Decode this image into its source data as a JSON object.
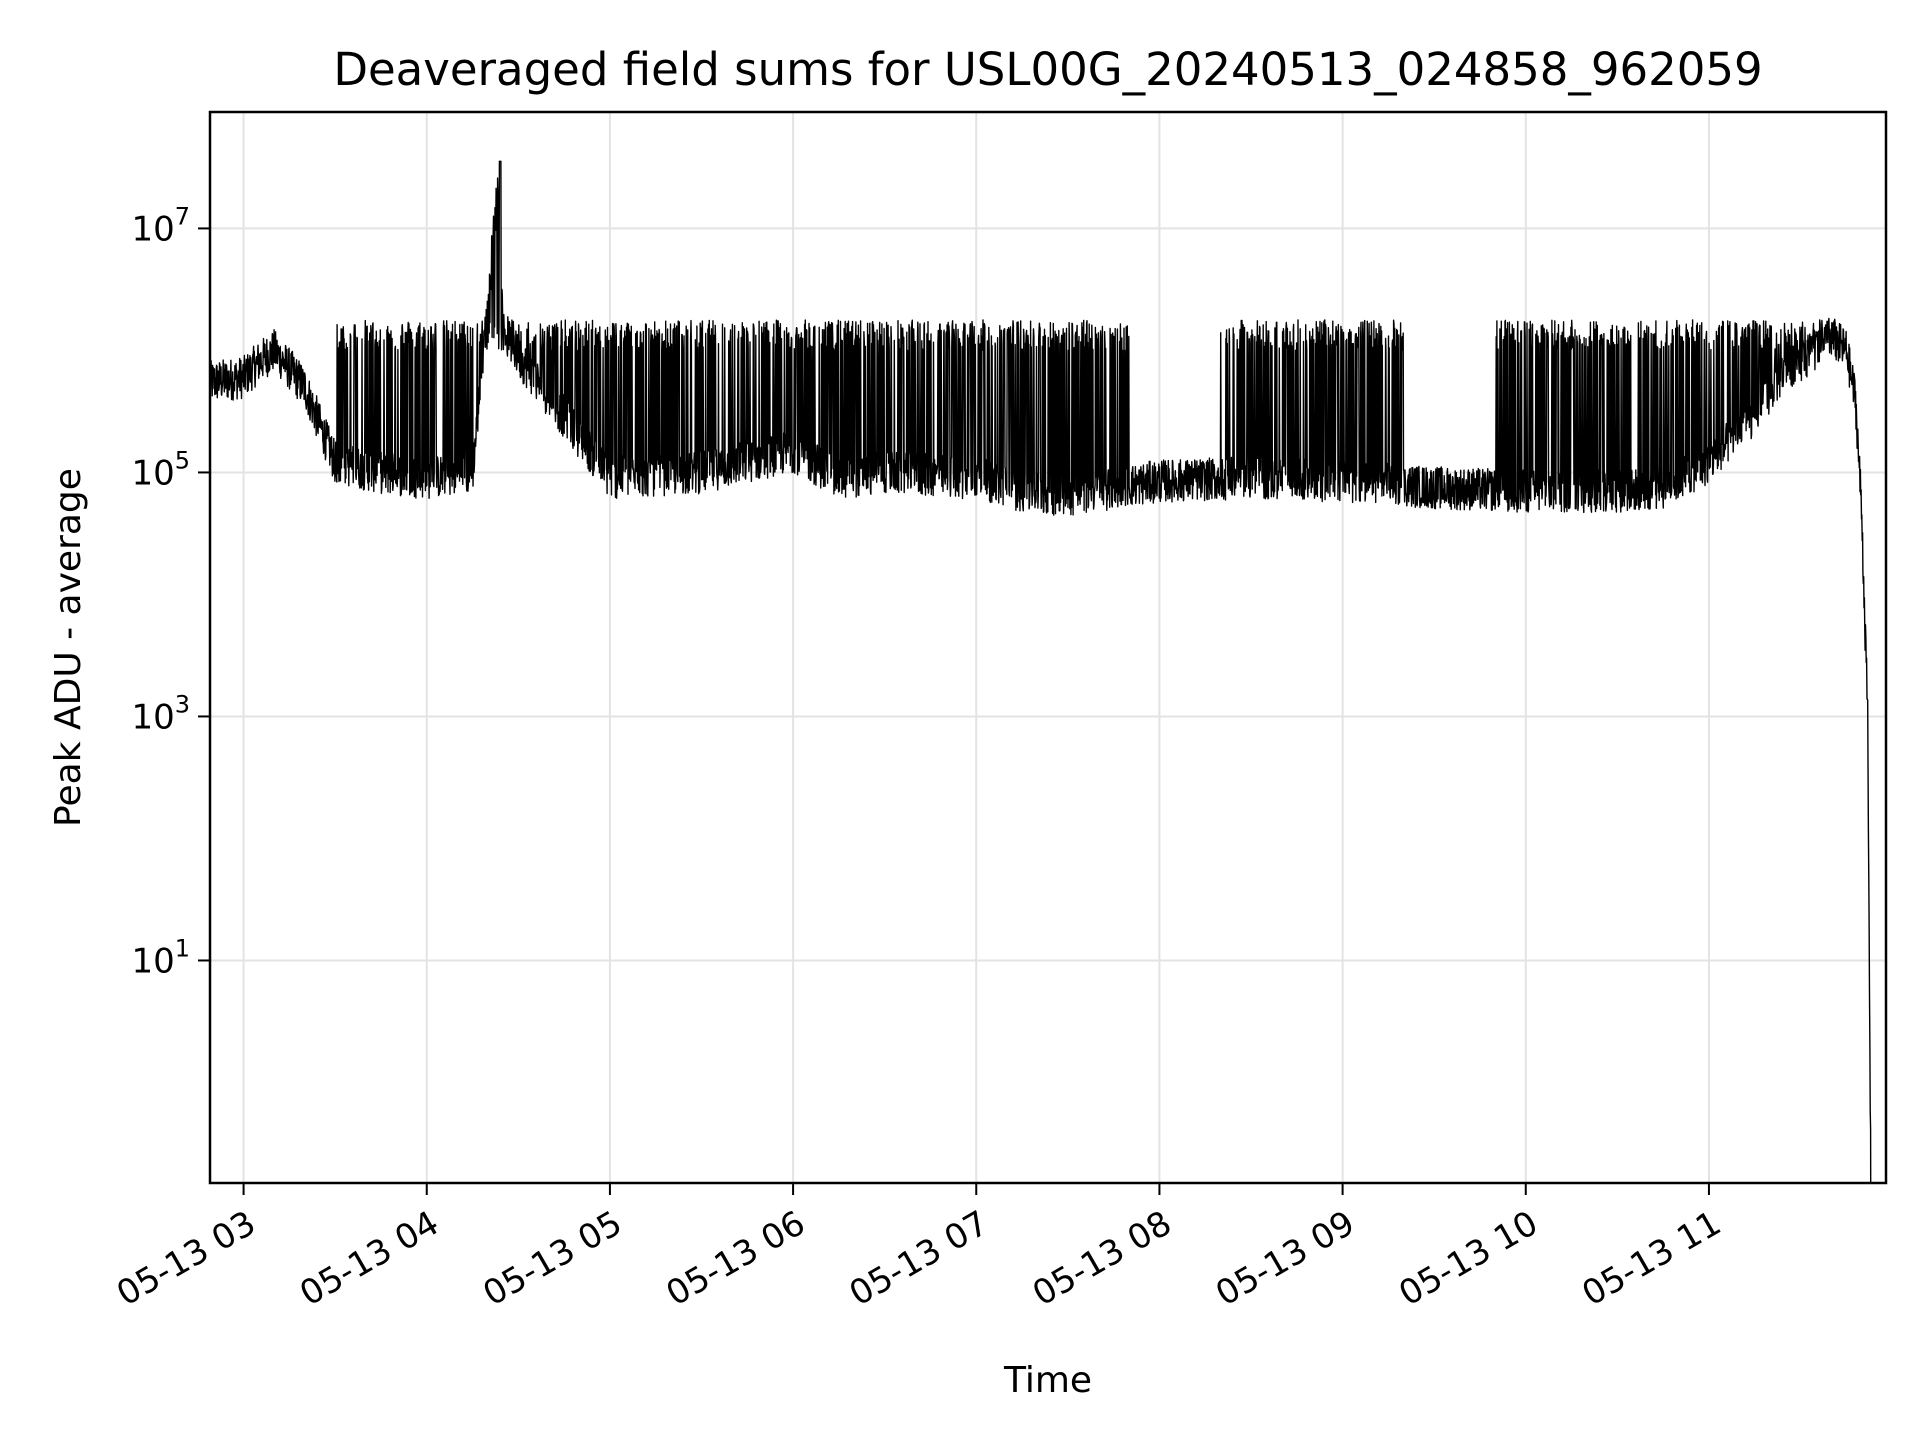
{
  "chart_data": {
    "type": "line",
    "title": "Deaveraged field sums for USL00G_20240513_024858_962059",
    "xlabel": "Time",
    "ylabel": "Peak ADU - average",
    "y_scale": "log",
    "ylim": [
      0.15,
      90000000
    ],
    "xlim": [
      "05-13 02:49",
      "05-13 11:58"
    ],
    "grid": true,
    "line_color": "#000000",
    "x_ticks": [
      "05-13 03",
      "05-13 04",
      "05-13 05",
      "05-13 06",
      "05-13 07",
      "05-13 08",
      "05-13 09",
      "05-13 10",
      "05-13 11"
    ],
    "y_ticks": [
      {
        "value": 10,
        "base": "10",
        "exp": "1"
      },
      {
        "value": 1000,
        "base": "10",
        "exp": "3"
      },
      {
        "value": 100000,
        "base": "10",
        "exp": "5"
      },
      {
        "value": 10000000,
        "base": "10",
        "exp": "7"
      }
    ],
    "series": [
      {
        "description": "spiky log-scale time series; baseline ~1e5 with frequent spikes to ~1.7e6",
        "x": [
          "05-13 02:49",
          "05-13 03:00",
          "05-13 03:05",
          "05-13 03:10",
          "05-13 03:20",
          "05-13 03:30",
          "05-13 03:45",
          "05-13 04:00",
          "05-13 04:15",
          "05-13 04:24",
          "05-13 04:25",
          "05-13 04:30",
          "05-13 05:00",
          "05-13 05:30",
          "05-13 06:00",
          "05-13 06:15",
          "05-13 06:30",
          "05-13 07:00",
          "05-13 07:15",
          "05-13 07:30",
          "05-13 08:00",
          "05-13 08:30",
          "05-13 09:00",
          "05-13 09:30",
          "05-13 10:00",
          "05-13 10:30",
          "05-13 10:45",
          "05-13 11:00",
          "05-13 11:15",
          "05-13 11:25",
          "05-13 11:35",
          "05-13 11:40",
          "05-13 11:45",
          "05-13 11:48",
          "05-13 11:50",
          "05-13 11:52",
          "05-13 11:53"
        ],
        "y": [
          550000,
          600000,
          800000,
          1000000,
          500000,
          120000,
          100000,
          90000,
          100000,
          35000000,
          1500000,
          900000,
          90000,
          100000,
          150000,
          90000,
          100000,
          90000,
          70000,
          65000,
          85000,
          90000,
          85000,
          75000,
          70000,
          70000,
          75000,
          120000,
          300000,
          700000,
          1000000,
          1300000,
          1000000,
          400000,
          50000,
          1000,
          0.2
        ]
      }
    ],
    "annotations": []
  }
}
